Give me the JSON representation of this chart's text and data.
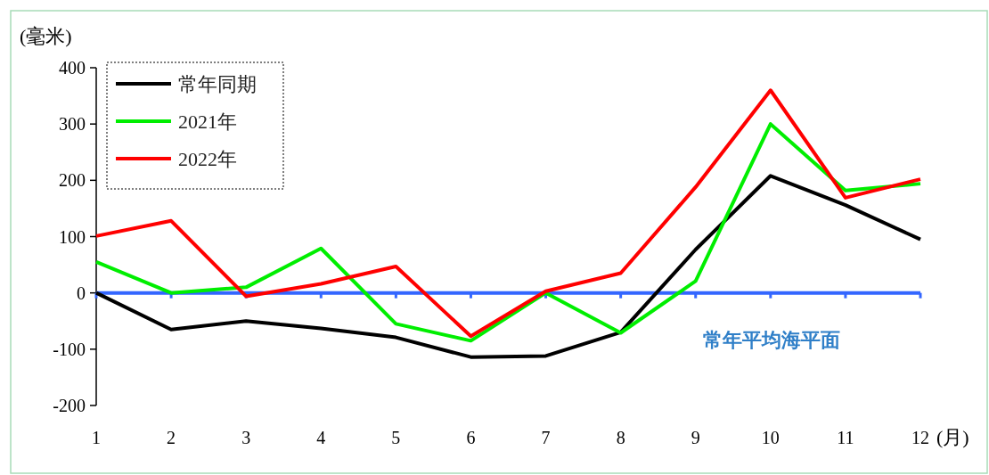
{
  "chart_data": {
    "type": "line",
    "ylabel": "(毫米)",
    "xlabel": "(月)",
    "x": [
      1,
      2,
      3,
      4,
      5,
      6,
      7,
      8,
      9,
      10,
      11,
      12
    ],
    "xlim": [
      1,
      12
    ],
    "xticks": [
      1,
      2,
      3,
      4,
      5,
      6,
      7,
      8,
      9,
      10,
      11,
      12
    ],
    "series": [
      {
        "name": "常年同期",
        "color": "#000000",
        "values": [
          0,
          -65,
          -50,
          -63,
          -79,
          -114,
          -112,
          -70,
          77,
          208,
          156,
          95
        ]
      },
      {
        "name": "2021年",
        "color": "#00ee00",
        "values": [
          55,
          0,
          10,
          79,
          -55,
          -85,
          0,
          -71,
          21,
          300,
          182,
          194
        ]
      },
      {
        "name": "2022年",
        "color": "#ff0000",
        "values": [
          101,
          128,
          -6,
          16,
          47,
          -77,
          3,
          35,
          188,
          360,
          169,
          202
        ]
      }
    ],
    "ylim": [
      -200,
      400
    ],
    "yticks": [
      -200,
      -100,
      0,
      100,
      200,
      300,
      400
    ],
    "ref_lines": [
      {
        "axis": "y",
        "value": 0,
        "label": "常年平均海平面",
        "color": "#3366ff"
      }
    ],
    "legend": "top left",
    "grid": false,
    "marker": "none",
    "line_style": "solid"
  }
}
